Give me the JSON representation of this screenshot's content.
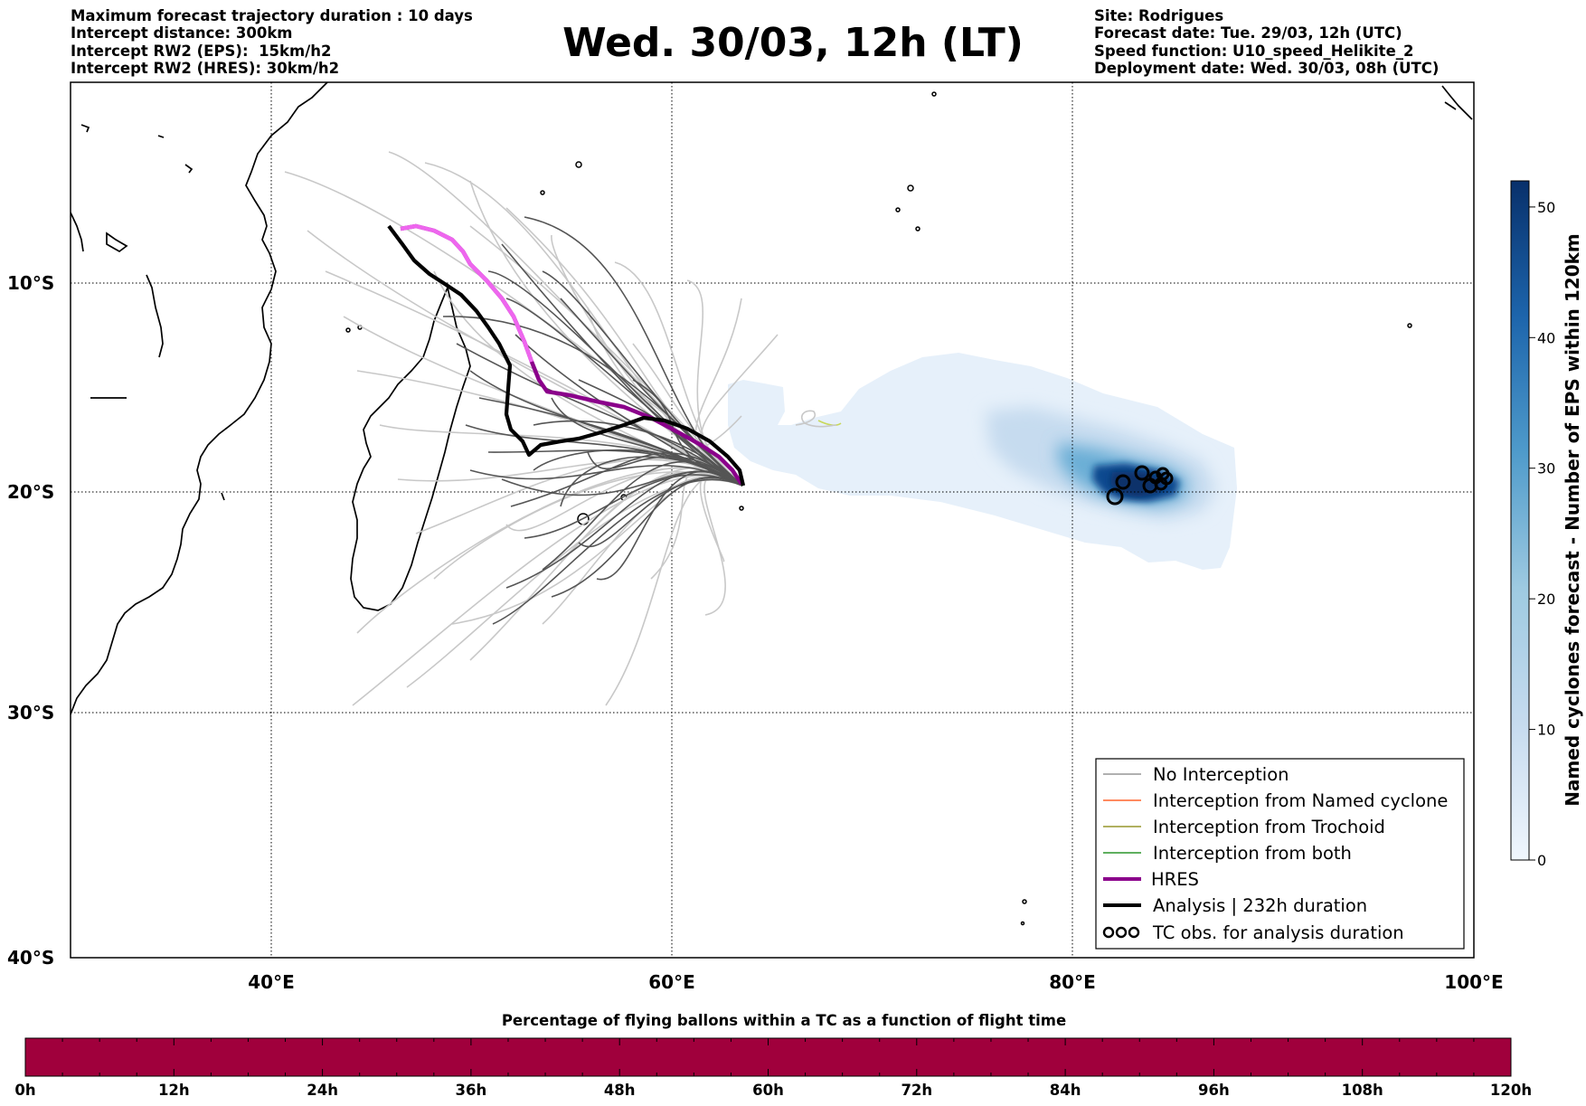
{
  "header": {
    "left": [
      "Maximum forecast trajectory duration : 10 days",
      "Intercept distance: 300km",
      "Intercept RW2 (EPS):  15km/h2",
      "Intercept RW2 (HRES): 30km/h2"
    ],
    "title": "Wed. 30/03, 12h (LT)",
    "right": [
      "Site: Rodrigues",
      "Forecast date: Tue. 29/03, 12h (UTC)",
      "Speed function: U10_speed_Helikite_2",
      "Deployment date: Wed. 30/03, 08h (UTC)"
    ]
  },
  "map": {
    "lat_labels": [
      "10°S",
      "20°S",
      "30°S",
      "40°S"
    ],
    "lon_labels": [
      "40°E",
      "60°E",
      "80°E",
      "100°E"
    ],
    "colors": {
      "hres": "#8b008b",
      "hres_start": "#ee66ee",
      "analysis": "#000000",
      "eps_dark": "#555555",
      "eps_light": "#c8c8c8",
      "density_low": "#deebf7",
      "density_high": "#08306b"
    }
  },
  "legend": {
    "items": [
      {
        "label": "No Interception",
        "color": "#808080"
      },
      {
        "label": "Interception from Named cyclone",
        "color": "#ff4500"
      },
      {
        "label": "Interception from Trochoid",
        "color": "#808000"
      },
      {
        "label": "Interception from both",
        "color": "#008000"
      },
      {
        "label": "HRES",
        "color": "#8b008b"
      },
      {
        "label": "Analysis | 232h duration",
        "color": "#000000"
      },
      {
        "label": "TC obs. for analysis duration",
        "color": "#000000"
      }
    ]
  },
  "colorbar": {
    "label": "Named cyclones forecast - Number of EPS within 120km",
    "ticks": [
      "0",
      "10",
      "20",
      "30",
      "40",
      "50"
    ],
    "range": [
      0,
      52
    ],
    "color_low": "#deebf7",
    "color_high": "#08306b"
  },
  "time_bar": {
    "title": "Percentage of flying ballons within a TC as a function of flight time",
    "ticks": [
      "0h",
      "12h",
      "24h",
      "36h",
      "48h",
      "60h",
      "72h",
      "84h",
      "96h",
      "108h",
      "120h"
    ],
    "color": "#a0003c"
  }
}
